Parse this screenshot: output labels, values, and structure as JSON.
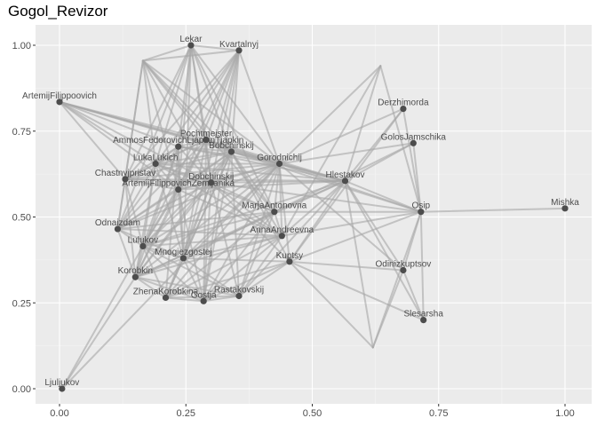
{
  "chart_data": {
    "type": "network",
    "title": "Gogol_Revizor",
    "xlim": [
      -0.05,
      1.05
    ],
    "ylim": [
      -0.05,
      1.05
    ],
    "x_ticks": [
      0.0,
      0.25,
      0.5,
      0.75,
      1.0
    ],
    "x_tick_labels": [
      "0.00",
      "0.25",
      "0.50",
      "0.75",
      "1.00"
    ],
    "y_ticks": [
      0.0,
      0.25,
      0.5,
      0.75,
      1.0
    ],
    "y_tick_labels": [
      "0.00",
      "0.25",
      "0.50",
      "0.75",
      "1.00"
    ],
    "grid": true,
    "colors": {
      "panel_background": "#ebebeb",
      "grid_major": "#ffffff",
      "grid_minor": "#f5f5f5",
      "edge": "#a6a6a6",
      "node": "#4d4d4d",
      "label": "#4d4d4d"
    },
    "nodes": [
      {
        "name": "Lekar",
        "x": 0.26,
        "y": 1.0,
        "labeled": true
      },
      {
        "name": "Kvartalnyj",
        "x": 0.355,
        "y": 0.985,
        "labeled": true
      },
      {
        "name": "ArtemijFilippoovich",
        "x": 0.0,
        "y": 0.835,
        "labeled": true
      },
      {
        "name": "Derzhimorda",
        "x": 0.68,
        "y": 0.815,
        "labeled": true
      },
      {
        "name": "GolosJamschika",
        "x": 0.7,
        "y": 0.715,
        "labeled": true
      },
      {
        "name": "Pochtmeister",
        "x": 0.29,
        "y": 0.725,
        "labeled": true
      },
      {
        "name": "AmmosFedorovichLjapkinTjapkin",
        "x": 0.235,
        "y": 0.705,
        "labeled": true
      },
      {
        "name": "Bobchinskij",
        "x": 0.34,
        "y": 0.69,
        "labeled": true
      },
      {
        "name": "LukaLukich",
        "x": 0.19,
        "y": 0.655,
        "labeled": true
      },
      {
        "name": "Gorodnichij",
        "x": 0.435,
        "y": 0.655,
        "labeled": true
      },
      {
        "name": "Chastnyjpristav",
        "x": 0.13,
        "y": 0.61,
        "labeled": true
      },
      {
        "name": "Dobchinskij",
        "x": 0.3,
        "y": 0.6,
        "labeled": true
      },
      {
        "name": "Hlestakov",
        "x": 0.565,
        "y": 0.605,
        "labeled": true
      },
      {
        "name": "ArtemijFilippovichZemljanika",
        "x": 0.235,
        "y": 0.58,
        "labeled": true
      },
      {
        "name": "Mishka",
        "x": 1.0,
        "y": 0.525,
        "labeled": true
      },
      {
        "name": "Osip",
        "x": 0.715,
        "y": 0.515,
        "labeled": true
      },
      {
        "name": "MarjaAntonovna",
        "x": 0.425,
        "y": 0.515,
        "labeled": true
      },
      {
        "name": "Odnaizdam",
        "x": 0.115,
        "y": 0.465,
        "labeled": true
      },
      {
        "name": "AnnaAndreevna",
        "x": 0.44,
        "y": 0.445,
        "labeled": true
      },
      {
        "name": "Lulukov",
        "x": 0.165,
        "y": 0.415,
        "labeled": true
      },
      {
        "name": "Mnogiezgostej",
        "x": 0.245,
        "y": 0.38,
        "labeled": true
      },
      {
        "name": "Kuptsy",
        "x": 0.455,
        "y": 0.37,
        "labeled": true
      },
      {
        "name": "Odinizkuptsov",
        "x": 0.68,
        "y": 0.345,
        "labeled": true
      },
      {
        "name": "Korobkin",
        "x": 0.15,
        "y": 0.325,
        "labeled": true
      },
      {
        "name": "Rastakovskij",
        "x": 0.355,
        "y": 0.27,
        "labeled": true
      },
      {
        "name": "ZhenaKorobkina",
        "x": 0.21,
        "y": 0.265,
        "labeled": true
      },
      {
        "name": "Gostja",
        "x": 0.285,
        "y": 0.255,
        "labeled": true
      },
      {
        "name": "Slesarsha",
        "x": 0.72,
        "y": 0.2,
        "labeled": true
      },
      {
        "name": "Ljuljukov",
        "x": 0.005,
        "y": 0.0,
        "labeled": true
      },
      {
        "name": "n30",
        "x": 0.165,
        "y": 0.955,
        "labeled": false
      },
      {
        "name": "n31",
        "x": 0.635,
        "y": 0.94,
        "labeled": false
      },
      {
        "name": "n32",
        "x": 0.62,
        "y": 0.12,
        "labeled": false
      }
    ],
    "edges": [
      [
        "Lekar",
        "n30"
      ],
      [
        "Lekar",
        "Kvartalnyj"
      ],
      [
        "Lekar",
        "LukaLukich"
      ],
      [
        "Lekar",
        "ArtemijFilippovichZemljanika"
      ],
      [
        "Lekar",
        "Dobchinskij"
      ],
      [
        "Lekar",
        "Pochtmeister"
      ],
      [
        "Lekar",
        "Bobchinskij"
      ],
      [
        "Lekar",
        "Gorodnichij"
      ],
      [
        "Lekar",
        "Chastnyjpristav"
      ],
      [
        "Lekar",
        "AmmosFedorovichLjapkinTjapkin"
      ],
      [
        "Lekar",
        "MarjaAntonovna"
      ],
      [
        "Lekar",
        "Mnogiezgostej"
      ],
      [
        "Lekar",
        "Odnaizdam"
      ],
      [
        "Kvartalnyj",
        "n30"
      ],
      [
        "Kvartalnyj",
        "Gorodnichij"
      ],
      [
        "Kvartalnyj",
        "Dobchinskij"
      ],
      [
        "Kvartalnyj",
        "LukaLukich"
      ],
      [
        "Kvartalnyj",
        "Bobchinskij"
      ],
      [
        "Kvartalnyj",
        "ArtemijFilippovichZemljanika"
      ],
      [
        "Kvartalnyj",
        "Pochtmeister"
      ],
      [
        "Kvartalnyj",
        "AmmosFedorovichLjapkinTjapkin"
      ],
      [
        "Kvartalnyj",
        "Chastnyjpristav"
      ],
      [
        "Kvartalnyj",
        "Lulukov"
      ],
      [
        "Kvartalnyj",
        "Gostja"
      ],
      [
        "Kvartalnyj",
        "Mnogiezgostej"
      ],
      [
        "n30",
        "Gorodnichij"
      ],
      [
        "n30",
        "Dobchinskij"
      ],
      [
        "n30",
        "ArtemijFilippovichZemljanika"
      ],
      [
        "n30",
        "Bobchinskij"
      ],
      [
        "n30",
        "Pochtmeister"
      ],
      [
        "n30",
        "LukaLukich"
      ],
      [
        "n30",
        "Odnaizdam"
      ],
      [
        "n30",
        "Chastnyjpristav"
      ],
      [
        "n30",
        "MarjaAntonovna"
      ],
      [
        "ArtemijFilippoovich",
        "Gorodnichij"
      ],
      [
        "ArtemijFilippoovich",
        "Hlestakov"
      ],
      [
        "ArtemijFilippoovich",
        "Dobchinskij"
      ],
      [
        "ArtemijFilippoovich",
        "LukaLukich"
      ],
      [
        "ArtemijFilippoovich",
        "Bobchinskij"
      ],
      [
        "ArtemijFilippoovich",
        "AmmosFedorovichLjapkinTjapkin"
      ],
      [
        "ArtemijFilippoovich",
        "ArtemijFilippovichZemljanika"
      ],
      [
        "ArtemijFilippoovich",
        "Pochtmeister"
      ],
      [
        "ArtemijFilippoovich",
        "Chastnyjpristav"
      ],
      [
        "Derzhimorda",
        "Gorodnichij"
      ],
      [
        "Derzhimorda",
        "Hlestakov"
      ],
      [
        "Derzhimorda",
        "Osip"
      ],
      [
        "Derzhimorda",
        "Kuptsy"
      ],
      [
        "n31",
        "Gorodnichij"
      ],
      [
        "n31",
        "Osip"
      ],
      [
        "n31",
        "AnnaAndreevna"
      ],
      [
        "n31",
        "Hlestakov"
      ],
      [
        "GolosJamschika",
        "Hlestakov"
      ],
      [
        "GolosJamschika",
        "Osip"
      ],
      [
        "GolosJamschika",
        "Gorodnichij"
      ],
      [
        "GolosJamschika",
        "MarjaAntonovna"
      ],
      [
        "Mishka",
        "Osip"
      ],
      [
        "Osip",
        "Hlestakov"
      ],
      [
        "Osip",
        "Gorodnichij"
      ],
      [
        "Osip",
        "AnnaAndreevna"
      ],
      [
        "Osip",
        "MarjaAntonovna"
      ],
      [
        "Osip",
        "Bobchinskij"
      ],
      [
        "Osip",
        "Dobchinskij"
      ],
      [
        "Osip",
        "Kuptsy"
      ],
      [
        "Osip",
        "Odinizkuptsov"
      ],
      [
        "Osip",
        "Slesarsha"
      ],
      [
        "Hlestakov",
        "Gorodnichij"
      ],
      [
        "Hlestakov",
        "AnnaAndreevna"
      ],
      [
        "Hlestakov",
        "MarjaAntonovna"
      ],
      [
        "Hlestakov",
        "Dobchinskij"
      ],
      [
        "Hlestakov",
        "Bobchinskij"
      ],
      [
        "Hlestakov",
        "LukaLukich"
      ],
      [
        "Hlestakov",
        "ArtemijFilippovichZemljanika"
      ],
      [
        "Hlestakov",
        "AmmosFedorovichLjapkinTjapkin"
      ],
      [
        "Hlestakov",
        "Pochtmeister"
      ],
      [
        "Hlestakov",
        "Kuptsy"
      ],
      [
        "Hlestakov",
        "Odinizkuptsov"
      ],
      [
        "Hlestakov",
        "Slesarsha"
      ],
      [
        "Hlestakov",
        "Rastakovskij"
      ],
      [
        "Hlestakov",
        "Lulukov"
      ],
      [
        "Hlestakov",
        "Korobkin"
      ],
      [
        "Hlestakov",
        "Chastnyjpristav"
      ],
      [
        "Hlestakov",
        "n32"
      ],
      [
        "Gorodnichij",
        "AnnaAndreevna"
      ],
      [
        "Gorodnichij",
        "MarjaAntonovna"
      ],
      [
        "Gorodnichij",
        "Dobchinskij"
      ],
      [
        "Gorodnichij",
        "Bobchinskij"
      ],
      [
        "Gorodnichij",
        "LukaLukich"
      ],
      [
        "Gorodnichij",
        "ArtemijFilippovichZemljanika"
      ],
      [
        "Gorodnichij",
        "AmmosFedorovichLjapkinTjapkin"
      ],
      [
        "Gorodnichij",
        "Pochtmeister"
      ],
      [
        "Gorodnichij",
        "Chastnyjpristav"
      ],
      [
        "Gorodnichij",
        "Kuptsy"
      ],
      [
        "Gorodnichij",
        "Korobkin"
      ],
      [
        "Gorodnichij",
        "Lulukov"
      ],
      [
        "Gorodnichij",
        "Rastakovskij"
      ],
      [
        "Gorodnichij",
        "Odnaizdam"
      ],
      [
        "Gorodnichij",
        "Gostja"
      ],
      [
        "Gorodnichij",
        "ZhenaKorobkina"
      ],
      [
        "Gorodnichij",
        "Ljuljukov"
      ],
      [
        "Gorodnichij",
        "Mnogiezgostej"
      ],
      [
        "Gorodnichij",
        "Odinizkuptsov"
      ],
      [
        "AnnaAndreevna",
        "MarjaAntonovna"
      ],
      [
        "AnnaAndreevna",
        "Dobchinskij"
      ],
      [
        "AnnaAndreevna",
        "Bobchinskij"
      ],
      [
        "AnnaAndreevna",
        "Korobkin"
      ],
      [
        "AnnaAndreevna",
        "ZhenaKorobkina"
      ],
      [
        "AnnaAndreevna",
        "Rastakovskij"
      ],
      [
        "AnnaAndreevna",
        "Gostja"
      ],
      [
        "AnnaAndreevna",
        "Lulukov"
      ],
      [
        "AnnaAndreevna",
        "Odnaizdam"
      ],
      [
        "AnnaAndreevna",
        "Mnogiezgostej"
      ],
      [
        "AnnaAndreevna",
        "LukaLukich"
      ],
      [
        "AnnaAndreevna",
        "ArtemijFilippovichZemljanika"
      ],
      [
        "MarjaAntonovna",
        "Dobchinskij"
      ],
      [
        "MarjaAntonovna",
        "Bobchinskij"
      ],
      [
        "MarjaAntonovna",
        "Korobkin"
      ],
      [
        "MarjaAntonovna",
        "ZhenaKorobkina"
      ],
      [
        "MarjaAntonovna",
        "Gostja"
      ],
      [
        "MarjaAntonovna",
        "Rastakovskij"
      ],
      [
        "MarjaAntonovna",
        "Lulukov"
      ],
      [
        "MarjaAntonovna",
        "Mnogiezgostej"
      ],
      [
        "MarjaAntonovna",
        "Odnaizdam"
      ],
      [
        "MarjaAntonovna",
        "LukaLukich"
      ],
      [
        "Dobchinskij",
        "Bobchinskij"
      ],
      [
        "Dobchinskij",
        "LukaLukich"
      ],
      [
        "Dobchinskij",
        "ArtemijFilippovichZemljanika"
      ],
      [
        "Dobchinskij",
        "AmmosFedorovichLjapkinTjapkin"
      ],
      [
        "Dobchinskij",
        "Pochtmeister"
      ],
      [
        "Dobchinskij",
        "Chastnyjpristav"
      ],
      [
        "Dobchinskij",
        "Odnaizdam"
      ],
      [
        "Dobchinskij",
        "Lulukov"
      ],
      [
        "Dobchinskij",
        "Korobkin"
      ],
      [
        "Dobchinskij",
        "ZhenaKorobkina"
      ],
      [
        "Dobchinskij",
        "Gostja"
      ],
      [
        "Dobchinskij",
        "Rastakovskij"
      ],
      [
        "Dobchinskij",
        "Mnogiezgostej"
      ],
      [
        "Dobchinskij",
        "Kuptsy"
      ],
      [
        "Bobchinskij",
        "LukaLukich"
      ],
      [
        "Bobchinskij",
        "ArtemijFilippovichZemljanika"
      ],
      [
        "Bobchinskij",
        "AmmosFedorovichLjapkinTjapkin"
      ],
      [
        "Bobchinskij",
        "Pochtmeister"
      ],
      [
        "Bobchinskij",
        "Chastnyjpristav"
      ],
      [
        "Bobchinskij",
        "Odnaizdam"
      ],
      [
        "Bobchinskij",
        "Lulukov"
      ],
      [
        "Bobchinskij",
        "Korobkin"
      ],
      [
        "Bobchinskij",
        "ZhenaKorobkina"
      ],
      [
        "Bobchinskij",
        "Gostja"
      ],
      [
        "Bobchinskij",
        "Rastakovskij"
      ],
      [
        "Bobchinskij",
        "Mnogiezgostej"
      ],
      [
        "Bobchinskij",
        "Kuptsy"
      ],
      [
        "LukaLukich",
        "ArtemijFilippovichZemljanika"
      ],
      [
        "LukaLukich",
        "AmmosFedorovichLjapkinTjapkin"
      ],
      [
        "LukaLukich",
        "Pochtmeister"
      ],
      [
        "LukaLukich",
        "Chastnyjpristav"
      ],
      [
        "LukaLukich",
        "Odnaizdam"
      ],
      [
        "LukaLukich",
        "Lulukov"
      ],
      [
        "LukaLukich",
        "Korobkin"
      ],
      [
        "LukaLukich",
        "Mnogiezgostej"
      ],
      [
        "ArtemijFilippovichZemljanika",
        "AmmosFedorovichLjapkinTjapkin"
      ],
      [
        "ArtemijFilippovichZemljanika",
        "Pochtmeister"
      ],
      [
        "ArtemijFilippovichZemljanika",
        "Chastnyjpristav"
      ],
      [
        "ArtemijFilippovichZemljanika",
        "Odnaizdam"
      ],
      [
        "ArtemijFilippovichZemljanika",
        "Lulukov"
      ],
      [
        "ArtemijFilippovichZemljanika",
        "Korobkin"
      ],
      [
        "ArtemijFilippovichZemljanika",
        "Mnogiezgostej"
      ],
      [
        "ArtemijFilippovichZemljanika",
        "Gostja"
      ],
      [
        "AmmosFedorovichLjapkinTjapkin",
        "Pochtmeister"
      ],
      [
        "AmmosFedorovichLjapkinTjapkin",
        "Chastnyjpristav"
      ],
      [
        "AmmosFedorovichLjapkinTjapkin",
        "Odnaizdam"
      ],
      [
        "AmmosFedorovichLjapkinTjapkin",
        "Lulukov"
      ],
      [
        "AmmosFedorovichLjapkinTjapkin",
        "Korobkin"
      ],
      [
        "AmmosFedorovichLjapkinTjapkin",
        "Mnogiezgostej"
      ],
      [
        "AmmosFedorovichLjapkinTjapkin",
        "ZhenaKorobkina"
      ],
      [
        "Pochtmeister",
        "Chastnyjpristav"
      ],
      [
        "Pochtmeister",
        "Odnaizdam"
      ],
      [
        "Pochtmeister",
        "Lulukov"
      ],
      [
        "Pochtmeister",
        "Korobkin"
      ],
      [
        "Pochtmeister",
        "Mnogiezgostej"
      ],
      [
        "Pochtmeister",
        "Gostja"
      ],
      [
        "Chastnyjpristav",
        "Odnaizdam"
      ],
      [
        "Chastnyjpristav",
        "Lulukov"
      ],
      [
        "Chastnyjpristav",
        "Korobkin"
      ],
      [
        "Odnaizdam",
        "Lulukov"
      ],
      [
        "Odnaizdam",
        "Korobkin"
      ],
      [
        "Odnaizdam",
        "Mnogiezgostej"
      ],
      [
        "Lulukov",
        "Korobkin"
      ],
      [
        "Lulukov",
        "Mnogiezgostej"
      ],
      [
        "Lulukov",
        "ZhenaKorobkina"
      ],
      [
        "Lulukov",
        "Gostja"
      ],
      [
        "Lulukov",
        "Rastakovskij"
      ],
      [
        "Korobkin",
        "ZhenaKorobkina"
      ],
      [
        "Korobkin",
        "Mnogiezgostej"
      ],
      [
        "Korobkin",
        "Gostja"
      ],
      [
        "Korobkin",
        "Rastakovskij"
      ],
      [
        "Korobkin",
        "Ljuljukov"
      ],
      [
        "ZhenaKorobkina",
        "Gostja"
      ],
      [
        "ZhenaKorobkina",
        "Rastakovskij"
      ],
      [
        "ZhenaKorobkina",
        "Mnogiezgostej"
      ],
      [
        "ZhenaKorobkina",
        "Kuptsy"
      ],
      [
        "Gostja",
        "Rastakovskij"
      ],
      [
        "Gostja",
        "Mnogiezgostej"
      ],
      [
        "Gostja",
        "Kuptsy"
      ],
      [
        "Rastakovskij",
        "Mnogiezgostej"
      ],
      [
        "Rastakovskij",
        "Kuptsy"
      ],
      [
        "Mnogiezgostej",
        "Kuptsy"
      ],
      [
        "Kuptsy",
        "Odinizkuptsov"
      ],
      [
        "Kuptsy",
        "n32"
      ],
      [
        "Kuptsy",
        "Slesarsha"
      ],
      [
        "Odinizkuptsov",
        "n32"
      ],
      [
        "Odinizkuptsov",
        "Slesarsha"
      ],
      [
        "n32",
        "Osip"
      ],
      [
        "Ljuljukov",
        "Lulukov"
      ]
    ]
  }
}
